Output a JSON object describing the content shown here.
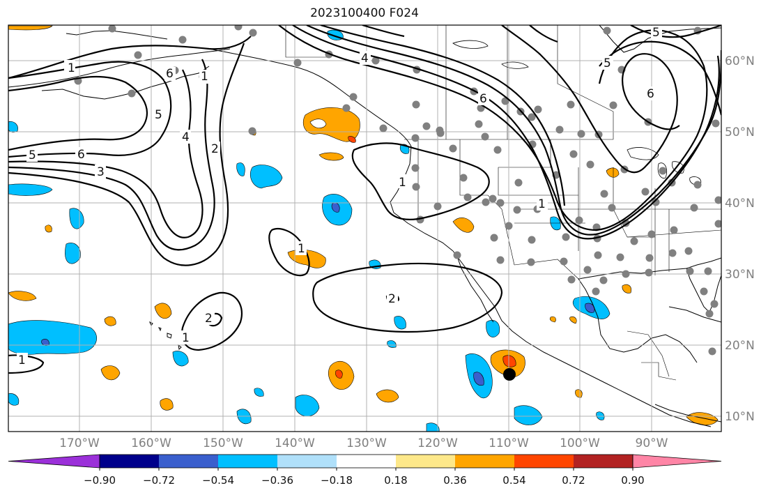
{
  "title": "2023100400 F024",
  "lon_labels": [
    "170°W",
    "160°W",
    "150°W",
    "140°W",
    "130°W",
    "120°W",
    "110°W",
    "100°W",
    "90°W"
  ],
  "lat_labels": [
    "60°N",
    "50°N",
    "40°N",
    "30°N",
    "20°N",
    "10°N"
  ],
  "colorbar": {
    "ticks": [
      "−0.90",
      "−0.72",
      "−0.54",
      "−0.36",
      "−0.18",
      "0.18",
      "0.36",
      "0.54",
      "0.72",
      "0.90"
    ],
    "colors": [
      "#9b30d9",
      "#00008b",
      "#3a5fcd",
      "#00bfff",
      "#b0e0fa",
      "#ffffff",
      "#fde88a",
      "#ffa500",
      "#ff4500",
      "#b22222",
      "#ff85a6"
    ]
  },
  "contour_labels": [
    "1",
    "6",
    "5",
    "4",
    "2",
    "3",
    "5",
    "6",
    "1",
    "4",
    "5",
    "6",
    "6",
    "5",
    "2",
    "1",
    "1",
    "1",
    "2",
    "1",
    "1"
  ],
  "colors": {
    "coast": "#000000",
    "grid": "#b0b0b0",
    "station": "#808080",
    "storm_marker": "#000000"
  }
}
